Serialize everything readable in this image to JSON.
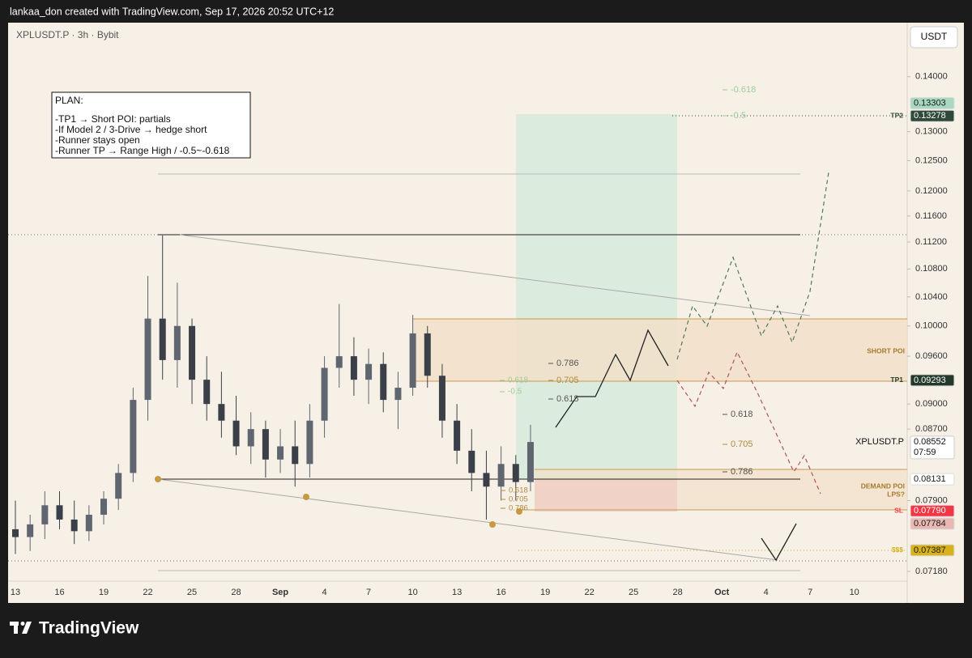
{
  "header": {
    "attribution": "lankaa_don created with TradingView.com, Sep 17, 2026 20:52 UTC+12"
  },
  "chart_data": {
    "type": "candlestick",
    "title": "XPLUSDT.P · 3h · Bybit",
    "currency": "USDT",
    "log_scale": true,
    "ylim": [
      0.0688,
      0.1506
    ],
    "yticks": [
      {
        "value": 0.14,
        "label": "0.14000"
      },
      {
        "value": 0.13,
        "label": "0.13000"
      },
      {
        "value": 0.125,
        "label": "0.12500"
      },
      {
        "value": 0.12,
        "label": "0.12000"
      },
      {
        "value": 0.116,
        "label": "0.11600"
      },
      {
        "value": 0.112,
        "label": "0.11200"
      },
      {
        "value": 0.108,
        "label": "0.10800"
      },
      {
        "value": 0.104,
        "label": "0.10400"
      },
      {
        "value": 0.1,
        "label": "0.10000"
      },
      {
        "value": 0.096,
        "label": "0.09600"
      },
      {
        "value": 0.09,
        "label": "0.09000"
      },
      {
        "value": 0.087,
        "label": "0.08700"
      },
      {
        "value": 0.079,
        "label": "0.07900"
      },
      {
        "value": 0.0718,
        "label": "0.07180"
      }
    ],
    "xticks": [
      "13",
      "16",
      "19",
      "22",
      "25",
      "28",
      "Sep",
      "4",
      "7",
      "10",
      "13",
      "16",
      "19",
      "22",
      "25",
      "28",
      "Oct",
      "4",
      "7",
      "10"
    ],
    "open": [
      0.076,
      0.0752,
      0.0765,
      0.0785,
      0.077,
      0.0758,
      0.0775,
      0.0792,
      0.082,
      0.0905,
      0.101,
      0.0955,
      0.1,
      0.093,
      0.09,
      0.088,
      0.085,
      0.087,
      0.0835,
      0.085,
      0.083,
      0.088,
      0.0945,
      0.096,
      0.093,
      0.095,
      0.0905,
      0.092,
      0.099,
      0.0935,
      0.088,
      0.0845,
      0.082,
      0.0805,
      0.083,
      0.081
    ],
    "high": [
      0.079,
      0.0775,
      0.08,
      0.08,
      0.079,
      0.0785,
      0.08,
      0.083,
      0.092,
      0.107,
      0.113,
      0.106,
      0.101,
      0.096,
      0.094,
      0.091,
      0.089,
      0.088,
      0.087,
      0.088,
      0.09,
      0.096,
      0.103,
      0.0985,
      0.097,
      0.0965,
      0.094,
      0.1015,
      0.1,
      0.095,
      0.09,
      0.087,
      0.0845,
      0.085,
      0.084,
      0.0875
    ],
    "low": [
      0.0735,
      0.0738,
      0.075,
      0.076,
      0.0745,
      0.0748,
      0.0765,
      0.078,
      0.081,
      0.088,
      0.093,
      0.092,
      0.09,
      0.088,
      0.086,
      0.084,
      0.083,
      0.0815,
      0.082,
      0.0805,
      0.0815,
      0.086,
      0.092,
      0.091,
      0.09,
      0.089,
      0.087,
      0.091,
      0.092,
      0.086,
      0.083,
      0.08,
      0.077,
      0.079,
      0.079,
      0.08
    ],
    "close": [
      0.0752,
      0.0765,
      0.0785,
      0.077,
      0.0758,
      0.0775,
      0.0792,
      0.082,
      0.0905,
      0.101,
      0.0955,
      0.1,
      0.093,
      0.09,
      0.088,
      0.085,
      0.087,
      0.0835,
      0.085,
      0.083,
      0.088,
      0.0945,
      0.096,
      0.093,
      0.095,
      0.0905,
      0.092,
      0.099,
      0.0935,
      0.088,
      0.0845,
      0.082,
      0.0805,
      0.083,
      0.081,
      0.0855
    ],
    "up_color": "#5f6670",
    "down_color": "#3b4048",
    "price_labels": [
      {
        "value": 0.13278,
        "label": "0.13278",
        "tag": "TP2",
        "color": "#2f4a3a",
        "text_color": "#ffffff"
      },
      {
        "value": 0.13303,
        "label": "0.13303",
        "color": "#a8d8c0",
        "text_color": "#1a1a1a"
      },
      {
        "value": 0.09293,
        "label": "0.09293",
        "tag": "TP1",
        "color": "#22392c",
        "text_color": "#ffffff"
      },
      {
        "value": 0.08131,
        "label": "0.08131",
        "color": "#ffffff",
        "text_color": "#1a1a1a"
      },
      {
        "value": 0.0779,
        "label": "0.07790",
        "tag": "SL",
        "color": "#f23645",
        "text_color": "#ffffff"
      },
      {
        "value": 0.07784,
        "label": "0.07784",
        "color": "#e9b8b2",
        "text_color": "#1a1a1a"
      },
      {
        "value": 0.07387,
        "label": "0.07387",
        "tag": "$$$",
        "color": "#d8b21c",
        "text_color": "#1a1a1a"
      }
    ],
    "last_price": {
      "symbol": "XPLUSDT.P",
      "value": 0.08552,
      "label": "0.08552",
      "countdown": "07:59"
    }
  },
  "note": {
    "lines": [
      "PLAN:",
      "-TP1 → Short POI: partials",
      "-If Model 2 / 3-Drive → hedge short",
      "-Runner stays open",
      "-Runner TP → Range High / -0.5~-0.618"
    ]
  },
  "annotations": {
    "short_poi": "SHORT POI",
    "demand_poi": "DEMAND POI",
    "lps": "LPS?",
    "fib_sets": [
      [
        0.786,
        0.705,
        0.618
      ],
      [
        -0.618,
        -0.5
      ],
      [
        0.618,
        -0.5
      ],
      [
        0.618,
        0.705,
        0.786
      ],
      [
        0.618,
        0.705,
        0.786
      ]
    ]
  },
  "footer": {
    "brand": "TradingView"
  }
}
